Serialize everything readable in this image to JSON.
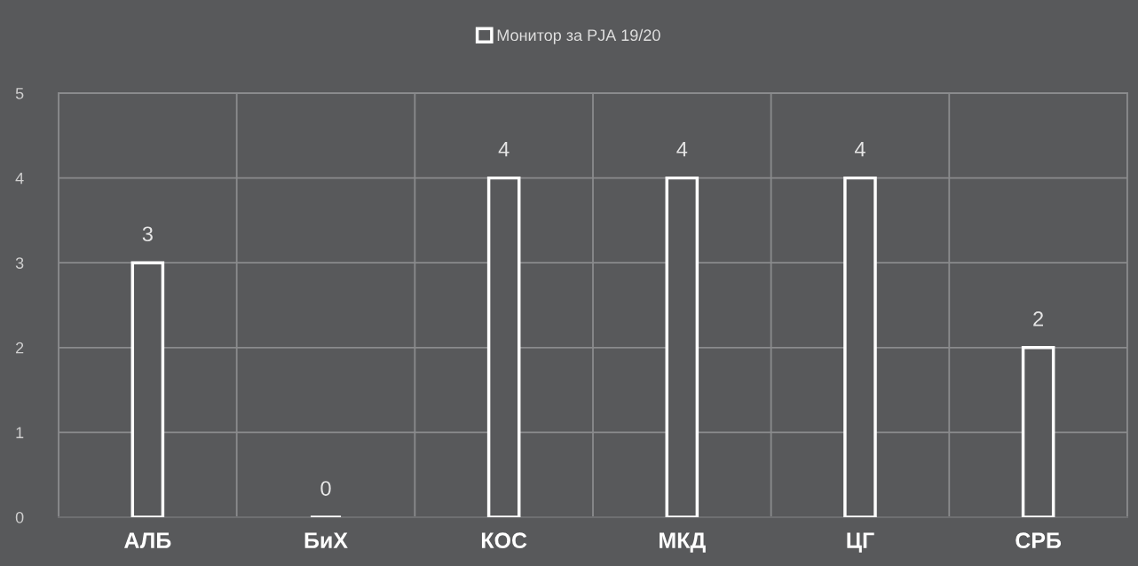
{
  "chart_data": {
    "type": "bar",
    "categories": [
      "АЛБ",
      "БиХ",
      "КОС",
      "МКД",
      "ЦГ",
      "СРБ"
    ],
    "series": [
      {
        "name": "Монитор за РЈА 19/20",
        "color": "#ffffff",
        "values": [
          3,
          0,
          4,
          4,
          4,
          2
        ]
      }
    ],
    "ylim": [
      0,
      5
    ],
    "yticks": [
      0,
      1,
      2,
      3,
      4,
      5
    ],
    "grid": true,
    "legend": "top",
    "data_labels": true
  }
}
